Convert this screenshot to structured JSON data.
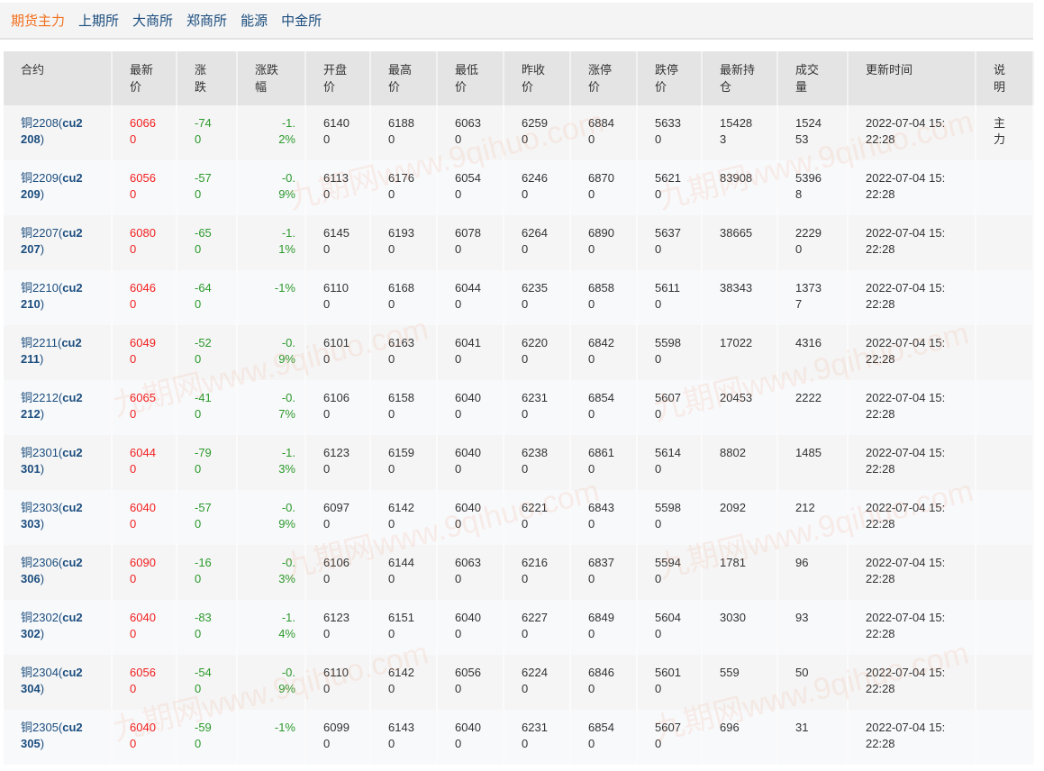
{
  "nav": {
    "tabs": [
      {
        "label": "期货主力",
        "active": true
      },
      {
        "label": "上期所"
      },
      {
        "label": "大商所"
      },
      {
        "label": "郑商所"
      },
      {
        "label": "能源"
      },
      {
        "label": "中金所"
      }
    ]
  },
  "colors": {
    "up": "#f21e1e",
    "down": "#2c9a2c",
    "active_tab": "#f26f1e",
    "link": "#1b4d7e"
  },
  "watermark": "九期网www.9qihuo.com",
  "table": {
    "headers": [
      "合约",
      "最新价",
      "涨跌",
      "涨跌幅",
      "开盘价",
      "最高价",
      "最低价",
      "昨收价",
      "涨停价",
      "跌停价",
      "最新持仓",
      "成交量",
      "更新时间",
      "说明"
    ],
    "rows": [
      {
        "name": "铜2208",
        "code": "cu2208",
        "last": "60660",
        "chg": "-740",
        "pct": "-1.2%",
        "open": "61400",
        "high": "61880",
        "low": "60630",
        "prev": "62590",
        "limit_up": "68840",
        "limit_down": "56330",
        "oi": "154283",
        "vol": "152453",
        "time": "2022-07-04 15:22:28",
        "note": "主力"
      },
      {
        "name": "铜2209",
        "code": "cu2209",
        "last": "60560",
        "chg": "-570",
        "pct": "-0.9%",
        "open": "61130",
        "high": "61760",
        "low": "60540",
        "prev": "62460",
        "limit_up": "68700",
        "limit_down": "56210",
        "oi": "83908",
        "vol": "53968",
        "time": "2022-07-04 15:22:28",
        "note": ""
      },
      {
        "name": "铜2207",
        "code": "cu2207",
        "last": "60800",
        "chg": "-650",
        "pct": "-1.1%",
        "open": "61450",
        "high": "61930",
        "low": "60780",
        "prev": "62640",
        "limit_up": "68900",
        "limit_down": "56370",
        "oi": "38665",
        "vol": "22290",
        "time": "2022-07-04 15:22:28",
        "note": ""
      },
      {
        "name": "铜2210",
        "code": "cu2210",
        "last": "60460",
        "chg": "-640",
        "pct": "-1%",
        "open": "61100",
        "high": "61680",
        "low": "60440",
        "prev": "62350",
        "limit_up": "68580",
        "limit_down": "56110",
        "oi": "38343",
        "vol": "13737",
        "time": "2022-07-04 15:22:28",
        "note": ""
      },
      {
        "name": "铜2211",
        "code": "cu2211",
        "last": "60490",
        "chg": "-520",
        "pct": "-0.9%",
        "open": "61010",
        "high": "61630",
        "low": "60410",
        "prev": "62200",
        "limit_up": "68420",
        "limit_down": "55980",
        "oi": "17022",
        "vol": "4316",
        "time": "2022-07-04 15:22:28",
        "note": ""
      },
      {
        "name": "铜2212",
        "code": "cu2212",
        "last": "60650",
        "chg": "-410",
        "pct": "-0.7%",
        "open": "61060",
        "high": "61580",
        "low": "60400",
        "prev": "62310",
        "limit_up": "68540",
        "limit_down": "56070",
        "oi": "20453",
        "vol": "2222",
        "time": "2022-07-04 15:22:28",
        "note": ""
      },
      {
        "name": "铜2301",
        "code": "cu2301",
        "last": "60440",
        "chg": "-790",
        "pct": "-1.3%",
        "open": "61230",
        "high": "61590",
        "low": "60400",
        "prev": "62380",
        "limit_up": "68610",
        "limit_down": "56140",
        "oi": "8802",
        "vol": "1485",
        "time": "2022-07-04 15:22:28",
        "note": ""
      },
      {
        "name": "铜2303",
        "code": "cu2303",
        "last": "60400",
        "chg": "-570",
        "pct": "-0.9%",
        "open": "60970",
        "high": "61420",
        "low": "60400",
        "prev": "62210",
        "limit_up": "68430",
        "limit_down": "55980",
        "oi": "2092",
        "vol": "212",
        "time": "2022-07-04 15:22:28",
        "note": ""
      },
      {
        "name": "铜2306",
        "code": "cu2306",
        "last": "60900",
        "chg": "-160",
        "pct": "-0.3%",
        "open": "61060",
        "high": "61440",
        "low": "60630",
        "prev": "62160",
        "limit_up": "68370",
        "limit_down": "55940",
        "oi": "1781",
        "vol": "96",
        "time": "2022-07-04 15:22:28",
        "note": ""
      },
      {
        "name": "铜2302",
        "code": "cu2302",
        "last": "60400",
        "chg": "-830",
        "pct": "-1.4%",
        "open": "61230",
        "high": "61510",
        "low": "60400",
        "prev": "62270",
        "limit_up": "68490",
        "limit_down": "56040",
        "oi": "3030",
        "vol": "93",
        "time": "2022-07-04 15:22:28",
        "note": ""
      },
      {
        "name": "铜2304",
        "code": "cu2304",
        "last": "60560",
        "chg": "-540",
        "pct": "-0.9%",
        "open": "61100",
        "high": "61420",
        "low": "60560",
        "prev": "62240",
        "limit_up": "68460",
        "limit_down": "56010",
        "oi": "559",
        "vol": "50",
        "time": "2022-07-04 15:22:28",
        "note": ""
      },
      {
        "name": "铜2305",
        "code": "cu2305",
        "last": "60400",
        "chg": "-590",
        "pct": "-1%",
        "open": "60990",
        "high": "61430",
        "low": "60400",
        "prev": "62310",
        "limit_up": "68540",
        "limit_down": "56070",
        "oi": "696",
        "vol": "31",
        "time": "2022-07-04 15:22:28",
        "note": ""
      }
    ]
  }
}
